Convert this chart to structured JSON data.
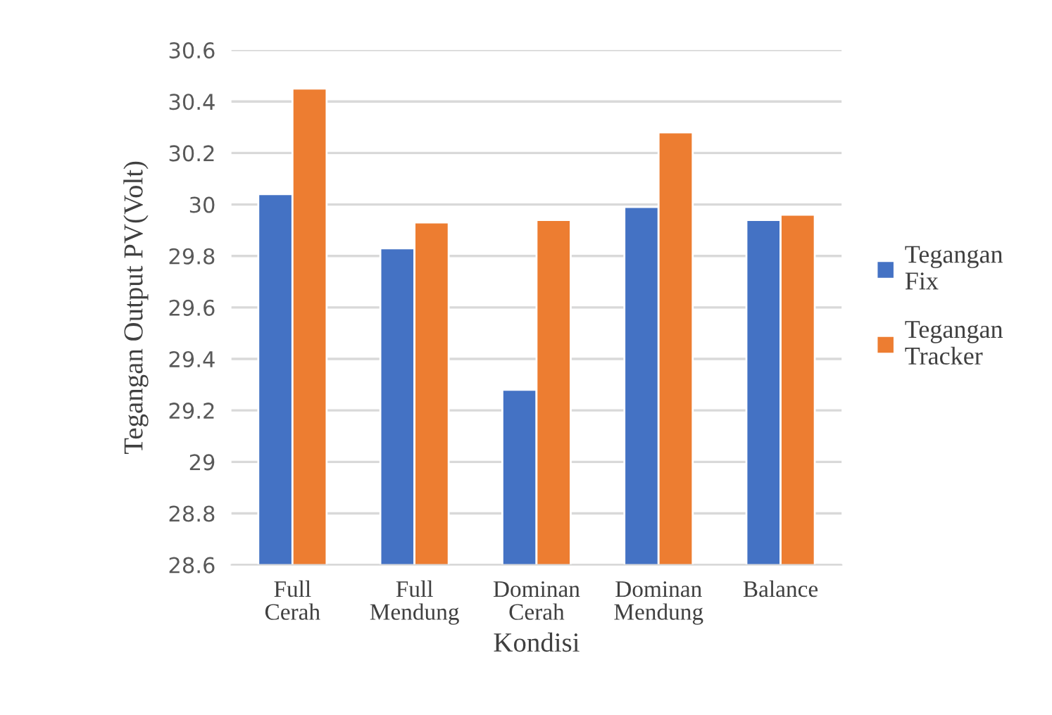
{
  "chart_data": {
    "type": "bar",
    "xlabel": "Kondisi",
    "ylabel": "Tegangan Output PV(Volt)",
    "categories": [
      "Full\nCerah",
      "Full\nMendung",
      "Dominan\nCerah",
      "Dominan\nMendung",
      "Balance"
    ],
    "series": [
      {
        "name": "Tegangan\nFix",
        "color": "#4472c4",
        "values": [
          30.04,
          29.83,
          29.28,
          29.99,
          29.94
        ]
      },
      {
        "name": "Tegangan\nTracker",
        "color": "#ed7d31",
        "values": [
          30.45,
          29.93,
          29.94,
          30.28,
          29.96
        ]
      }
    ],
    "ylim": [
      28.6,
      30.6
    ],
    "yticks": [
      28.6,
      28.8,
      29,
      29.2,
      29.4,
      29.6,
      29.8,
      30,
      30.2,
      30.4,
      30.6
    ],
    "grid": "y",
    "legend": "right"
  }
}
